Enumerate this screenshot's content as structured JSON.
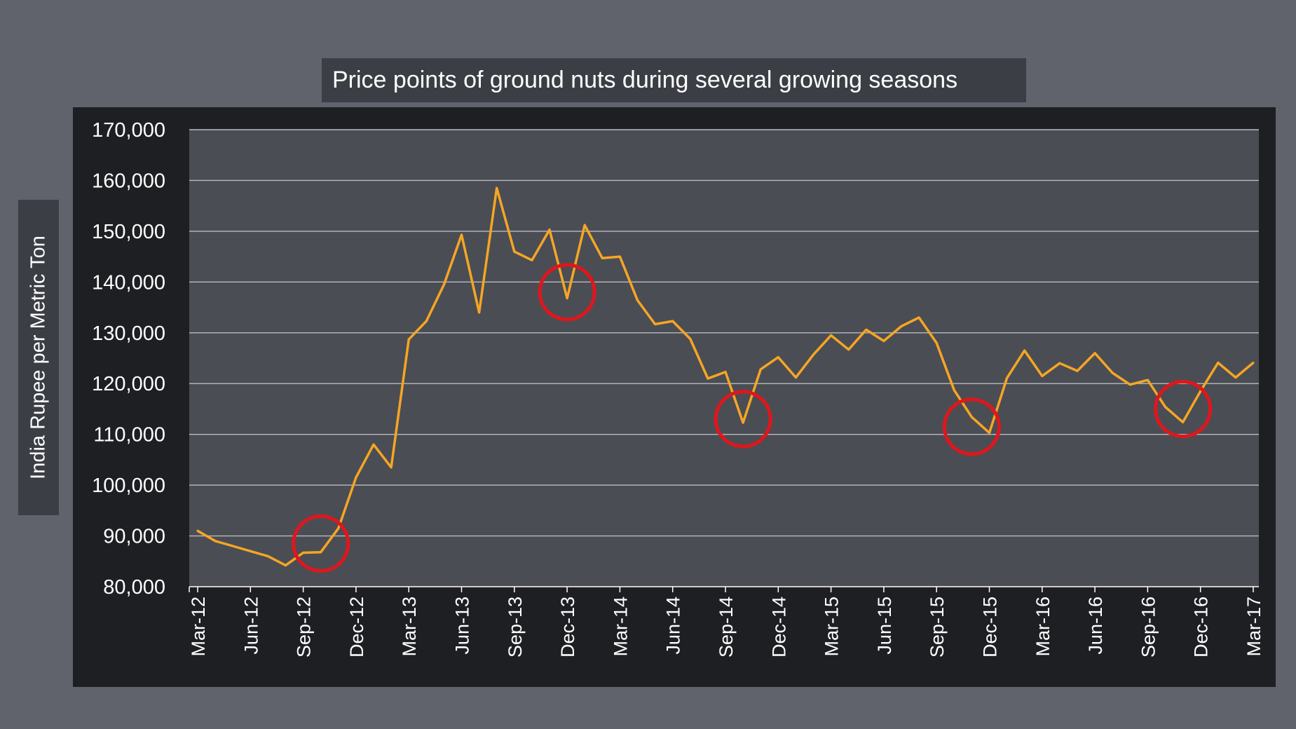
{
  "chart_data": {
    "type": "line",
    "title": "Price points of ground nuts during several growing seasons",
    "xlabel": "",
    "ylabel": "India Rupee per Metric Ton",
    "ylim": [
      80000,
      170000
    ],
    "y_ticks": [
      "80,000",
      "90,000",
      "100,000",
      "110,000",
      "120,000",
      "130,000",
      "140,000",
      "150,000",
      "160,000",
      "170,000"
    ],
    "x_ticks": [
      "Mar-12",
      "Jun-12",
      "Sep-12",
      "Dec-12",
      "Mar-13",
      "Jun-13",
      "Sep-13",
      "Dec-13",
      "Mar-14",
      "Jun-14",
      "Sep-14",
      "Dec-14",
      "Mar-15",
      "Jun-15",
      "Sep-15",
      "Dec-15",
      "Mar-16",
      "Jun-16",
      "Sep-16",
      "Dec-16",
      "Mar-17"
    ],
    "grid": true,
    "line_color": "#f5a623",
    "highlight_color": "#e0161b",
    "series": [
      {
        "values": [
          91000,
          89000,
          88000,
          87000,
          86000,
          84200,
          86700,
          86800,
          91500,
          101500,
          108000,
          103500,
          128700,
          132300,
          139500,
          149300,
          134000,
          158500,
          146000,
          144300,
          150300,
          136800,
          151200,
          144700,
          145000,
          136400,
          131700,
          132300,
          128800,
          121000,
          122300,
          112300,
          122800,
          125200,
          121200,
          125700,
          129500,
          126700,
          130600,
          128400,
          131300,
          133000,
          128000,
          118700,
          113400,
          110300,
          121100,
          126500,
          121500,
          124000,
          122500,
          126000,
          122100,
          119800,
          120700,
          115400,
          112400,
          118500,
          124100,
          121200,
          124100
        ]
      }
    ],
    "highlights": [
      {
        "x": "Oct-12",
        "y": 88500
      },
      {
        "x": "Dec-13",
        "y": 138000
      },
      {
        "x": "Oct-14",
        "y": 113000
      },
      {
        "x": "Nov-15",
        "y": 111500
      },
      {
        "x": "Nov-16",
        "y": 115000
      }
    ]
  }
}
